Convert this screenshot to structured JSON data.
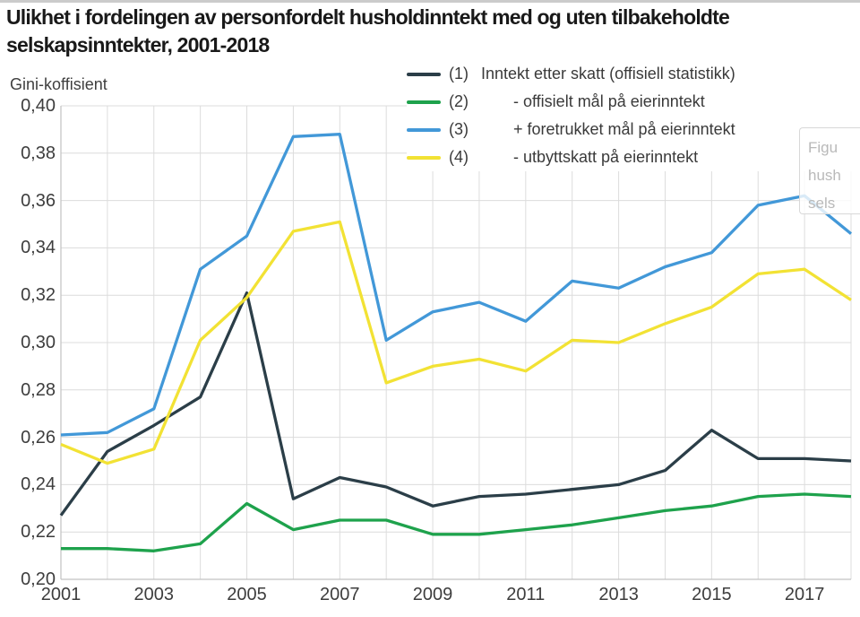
{
  "page": {
    "title": "Ulikhet i fordelingen av personfordelt husholdinntekt med og uten tilbakeholdte selskapsinntekter, 2001-2018",
    "y_axis_unit_label": "Gini-koffisient"
  },
  "colors": {
    "grid": "#dcdcdc",
    "axis": "#c2c2c2",
    "series1": "#2b3e48",
    "series2": "#1ea24c",
    "series3": "#4298d8",
    "series4": "#f2e234"
  },
  "tooltip_fragment": {
    "lines": [
      "Figu",
      "hush",
      "sels"
    ]
  },
  "chart_data": {
    "type": "line",
    "title": "Ulikhet i fordelingen av personfordelt husholdinntekt med og uten tilbakeholdte selskapsinntekter, 2001-2018",
    "ylabel": "Gini-koffisient",
    "grid": true,
    "legend_position": "top-right",
    "xlim": [
      2001,
      2018
    ],
    "ylim": [
      0.2,
      0.4
    ],
    "x": [
      2001,
      2002,
      2003,
      2004,
      2005,
      2006,
      2007,
      2008,
      2009,
      2010,
      2011,
      2012,
      2013,
      2014,
      2015,
      2016,
      2017,
      2018
    ],
    "series": [
      {
        "num": "(1)",
        "name": "Inntekt etter skatt (offisiell statistikk)",
        "color": "#2b3e48",
        "values": [
          0.227,
          0.254,
          0.265,
          0.277,
          0.321,
          0.234,
          0.243,
          0.239,
          0.231,
          0.235,
          0.236,
          0.238,
          0.24,
          0.246,
          0.263,
          0.251,
          0.251,
          0.25
        ]
      },
      {
        "num": "(2)",
        "name": "- offisielt mål på eierinntekt",
        "color": "#1ea24c",
        "values": [
          0.213,
          0.213,
          0.212,
          0.215,
          0.232,
          0.221,
          0.225,
          0.225,
          0.219,
          0.219,
          0.221,
          0.223,
          0.226,
          0.229,
          0.231,
          0.235,
          0.236,
          0.235
        ]
      },
      {
        "num": "(3)",
        "name": "+ foretrukket mål på eierinntekt",
        "color": "#4298d8",
        "values": [
          0.261,
          0.262,
          0.272,
          0.331,
          0.345,
          0.387,
          0.388,
          0.301,
          0.313,
          0.317,
          0.309,
          0.326,
          0.323,
          0.332,
          0.338,
          0.358,
          0.362,
          0.346
        ]
      },
      {
        "num": "(4)",
        "name": "- utbyttskatt på eierinntekt",
        "color": "#f2e234",
        "values": [
          0.257,
          0.249,
          0.255,
          0.301,
          0.319,
          0.347,
          0.351,
          0.283,
          0.29,
          0.293,
          0.288,
          0.301,
          0.3,
          0.308,
          0.315,
          0.329,
          0.331,
          0.318
        ]
      }
    ],
    "y_ticks": {
      "values": [
        0.4,
        0.38,
        0.36,
        0.34,
        0.32,
        0.3,
        0.28,
        0.26,
        0.24,
        0.22,
        0.2
      ],
      "labels": [
        "0,40",
        "0,38",
        "0,36",
        "0,34",
        "0,32",
        "0,30",
        "0,28",
        "0,26",
        "0,24",
        "0,22",
        "0,20"
      ]
    },
    "x_ticks": {
      "values": [
        2001,
        2003,
        2005,
        2007,
        2009,
        2011,
        2013,
        2015,
        2017
      ],
      "labels": [
        "2001",
        "2003",
        "2005",
        "2007",
        "2009",
        "2011",
        "2013",
        "2015",
        "2017"
      ]
    }
  }
}
